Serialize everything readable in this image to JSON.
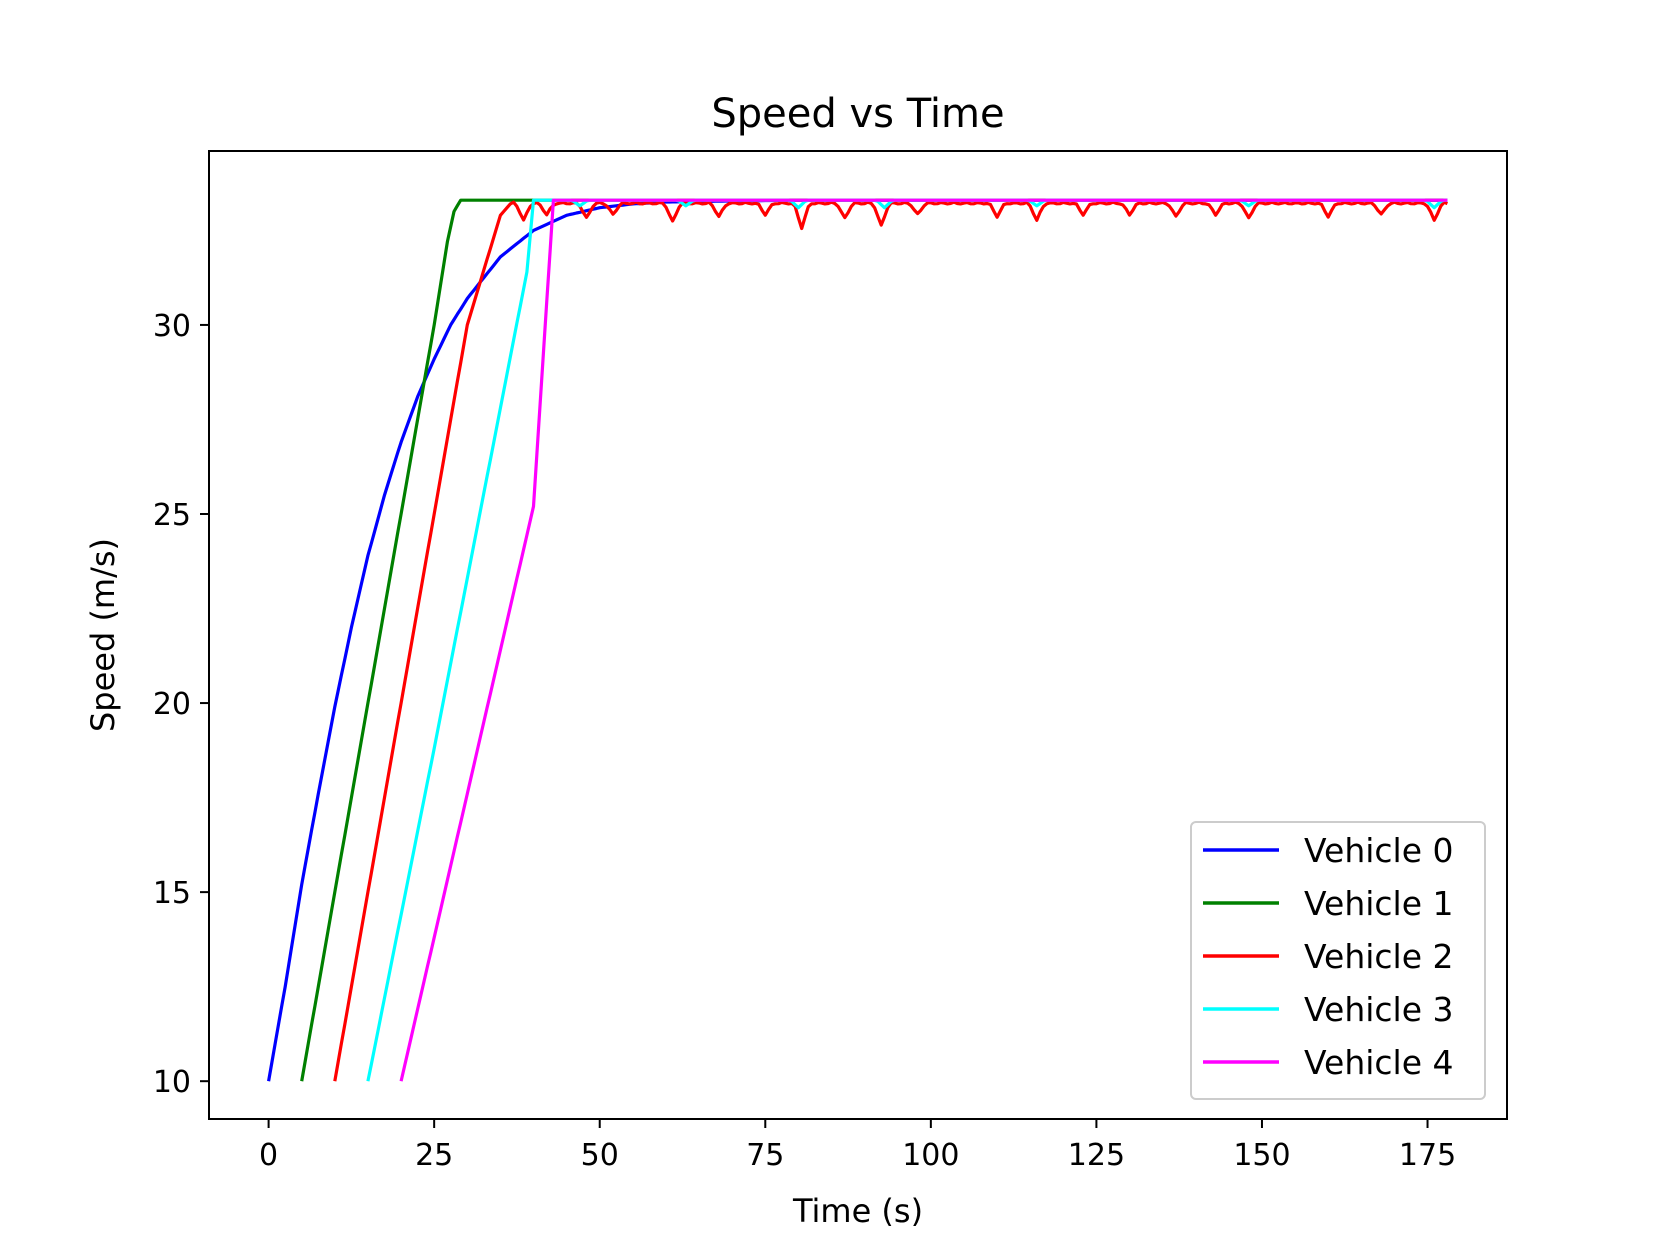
{
  "chart_data": {
    "type": "line",
    "title": "Speed vs Time",
    "xlabel": "Time (s)",
    "ylabel": "Speed (m/s)",
    "xlim": [
      -9,
      187
    ],
    "ylim": [
      9.0,
      34.6
    ],
    "xticks": [
      0,
      25,
      50,
      75,
      100,
      125,
      150,
      175
    ],
    "yticks": [
      10,
      15,
      20,
      25,
      30
    ],
    "grid": false,
    "legend_position": "lower-right",
    "series": [
      {
        "name": "Vehicle 0",
        "color": "#0000ff",
        "x": [
          0,
          2.5,
          5,
          7.5,
          10,
          12.5,
          15,
          17.5,
          20,
          22.5,
          25,
          27.5,
          30,
          35,
          40,
          45,
          50,
          55,
          60,
          70,
          80,
          100,
          125,
          150,
          178
        ],
        "y": [
          10.0,
          12.5,
          15.2,
          17.6,
          19.9,
          22.0,
          23.9,
          25.5,
          26.9,
          28.1,
          29.1,
          30.0,
          30.7,
          31.8,
          32.5,
          32.9,
          33.1,
          33.2,
          33.25,
          33.28,
          33.3,
          33.3,
          33.3,
          33.3,
          33.3
        ]
      },
      {
        "name": "Vehicle 1",
        "color": "#008000",
        "x": [
          5,
          10,
          15,
          20,
          25,
          27,
          28,
          29,
          35,
          60,
          100,
          150,
          178
        ],
        "y": [
          10.0,
          15.0,
          20.0,
          25.0,
          30.0,
          32.2,
          33.0,
          33.3,
          33.3,
          33.3,
          33.3,
          33.3,
          33.3
        ],
        "dips": []
      },
      {
        "name": "Vehicle 2",
        "color": "#ff0000",
        "x": [
          10,
          15,
          20,
          25,
          30,
          35,
          37,
          178
        ],
        "y": [
          10.0,
          15.0,
          20.0,
          25.0,
          30.0,
          32.9,
          33.3,
          33.3
        ],
        "dips": [
          [
            38.5,
            0.45
          ],
          [
            42,
            0.3
          ],
          [
            48,
            0.4
          ],
          [
            52,
            0.3
          ],
          [
            61,
            0.5
          ],
          [
            68,
            0.35
          ],
          [
            75,
            0.3
          ],
          [
            80.5,
            0.65
          ],
          [
            87,
            0.4
          ],
          [
            92.5,
            0.6
          ],
          [
            98,
            0.3
          ],
          [
            110,
            0.35
          ],
          [
            116,
            0.45
          ],
          [
            123,
            0.3
          ],
          [
            130,
            0.3
          ],
          [
            137,
            0.35
          ],
          [
            143,
            0.3
          ],
          [
            148,
            0.4
          ],
          [
            160,
            0.35
          ],
          [
            168,
            0.3
          ],
          [
            176,
            0.45
          ]
        ]
      },
      {
        "name": "Vehicle 3",
        "color": "#00ffff",
        "x": [
          15,
          20,
          25,
          30,
          35,
          39,
          40,
          178
        ],
        "y": [
          10.0,
          14.4,
          18.8,
          23.3,
          27.8,
          31.4,
          33.3,
          33.3
        ],
        "dips": [
          [
            47,
            0.15
          ],
          [
            63,
            0.15
          ],
          [
            80,
            0.2
          ],
          [
            93,
            0.2
          ],
          [
            116,
            0.15
          ],
          [
            148,
            0.15
          ],
          [
            176,
            0.2
          ]
        ]
      },
      {
        "name": "Vehicle 4",
        "color": "#ff00ff",
        "x": [
          20,
          25,
          30,
          35,
          40,
          43,
          178
        ],
        "y": [
          10.0,
          13.8,
          17.6,
          21.4,
          25.2,
          33.3,
          33.3
        ],
        "dips": []
      }
    ]
  }
}
